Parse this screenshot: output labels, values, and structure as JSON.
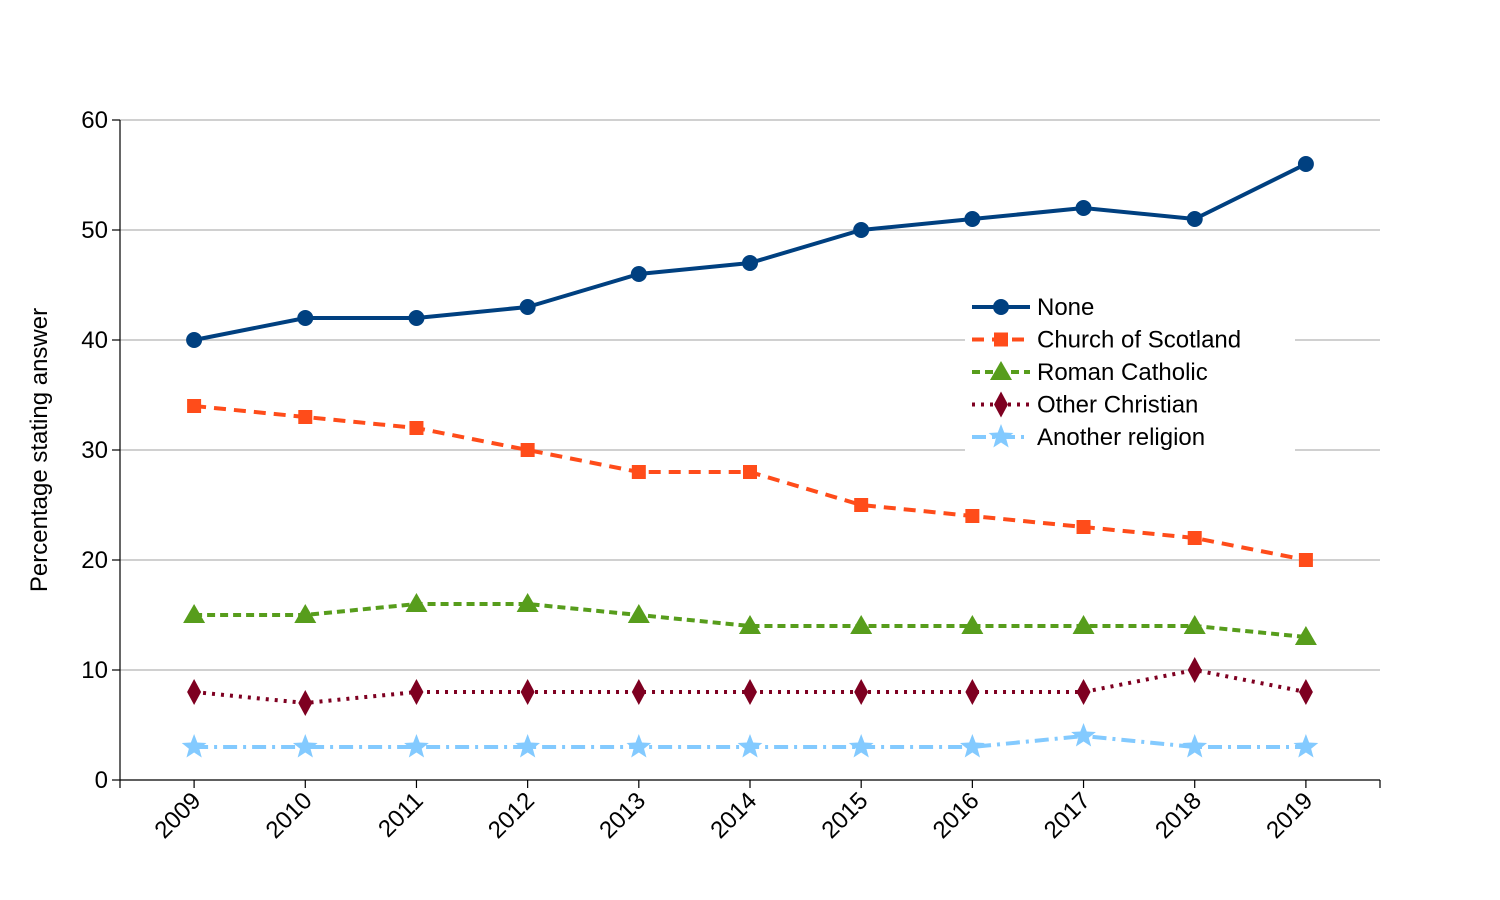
{
  "chart_data": {
    "type": "line",
    "title": "",
    "xlabel": "",
    "ylabel": "Percentage stating answer",
    "x": [
      "2009",
      "2010",
      "2011",
      "2012",
      "2013",
      "2014",
      "2015",
      "2016",
      "2017",
      "2018",
      "2019"
    ],
    "ylim": [
      0,
      60
    ],
    "yticks": [
      0,
      10,
      20,
      30,
      40,
      50,
      60
    ],
    "grid": true,
    "legend_position": "right-center",
    "series": [
      {
        "name": "None",
        "color": "#004080",
        "dash": "solid",
        "marker": "circle",
        "values": [
          40,
          42,
          42,
          43,
          46,
          47,
          50,
          51,
          52,
          51,
          56
        ]
      },
      {
        "name": "Church of Scotland",
        "color": "#ff4c1a",
        "dash": "dashed",
        "marker": "square",
        "values": [
          34,
          33,
          32,
          30,
          28,
          28,
          25,
          24,
          23,
          22,
          20
        ]
      },
      {
        "name": "Roman Catholic",
        "color": "#579d1c",
        "dash": "short-dashed",
        "marker": "triangle",
        "values": [
          15,
          15,
          16,
          16,
          15,
          14,
          14,
          14,
          14,
          14,
          13
        ]
      },
      {
        "name": "Other Christian",
        "color": "#7e0021",
        "dash": "dotted",
        "marker": "diamond",
        "values": [
          8,
          7,
          8,
          8,
          8,
          8,
          8,
          8,
          8,
          10,
          8
        ]
      },
      {
        "name": "Another religion",
        "color": "#83caff",
        "dash": "dash-dot",
        "marker": "star",
        "values": [
          3,
          3,
          3,
          3,
          3,
          3,
          3,
          3,
          4,
          3,
          3
        ]
      }
    ]
  }
}
